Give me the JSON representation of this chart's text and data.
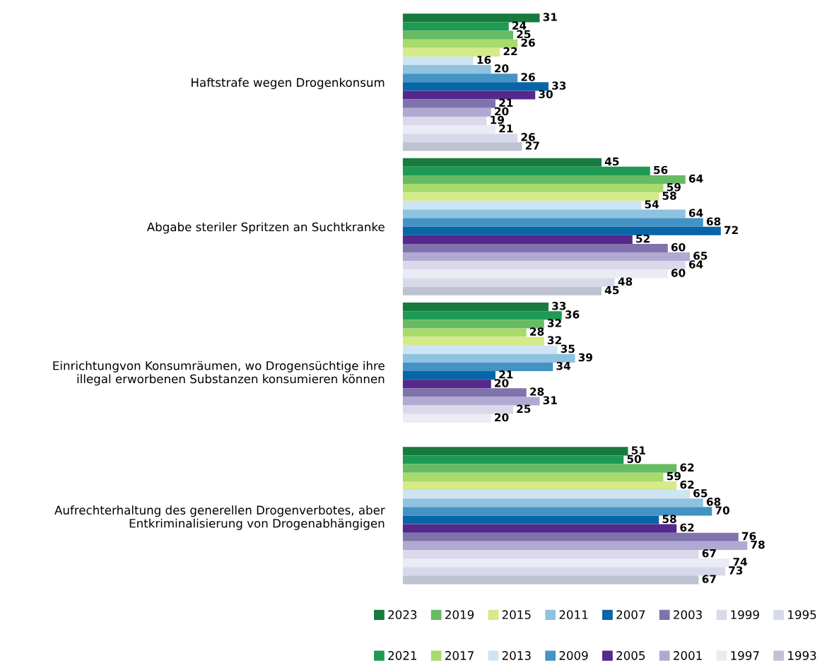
{
  "chart_data": {
    "type": "bar",
    "orientation": "horizontal",
    "data_labels": true,
    "legend": "bottom",
    "grid": false,
    "categories": [
      "Haftstrafe wegen Drogenkonsum",
      "Abgabe steriler Spritzen an Suchtkranke",
      "Einrichtungvon Konsumräumen, wo Drogensüchtige ihre\nillegal erworbenen Substanzen konsumieren können",
      "Aufrechterhaltung des generellen Drogenverbotes, aber\nEntkriminalisierung von Drogenabhängigen"
    ],
    "series": [
      {
        "name": "2023",
        "color": "#177a3f",
        "values": [
          31,
          45,
          33,
          51
        ]
      },
      {
        "name": "2021",
        "color": "#1e9a52",
        "values": [
          24,
          56,
          36,
          50
        ]
      },
      {
        "name": "2019",
        "color": "#66bb64",
        "values": [
          25,
          64,
          32,
          62
        ]
      },
      {
        "name": "2017",
        "color": "#a8da6c",
        "values": [
          26,
          59,
          28,
          59
        ]
      },
      {
        "name": "2015",
        "color": "#d5ea88",
        "values": [
          22,
          58,
          32,
          62
        ]
      },
      {
        "name": "2013",
        "color": "#cde4f4",
        "values": [
          16,
          54,
          35,
          65
        ]
      },
      {
        "name": "2011",
        "color": "#8fc2df",
        "values": [
          20,
          64,
          39,
          68
        ]
      },
      {
        "name": "2009",
        "color": "#4393c4",
        "values": [
          26,
          68,
          34,
          70
        ]
      },
      {
        "name": "2007",
        "color": "#0866a8",
        "values": [
          33,
          72,
          21,
          58
        ]
      },
      {
        "name": "2005",
        "color": "#55288b",
        "values": [
          30,
          52,
          20,
          62
        ]
      },
      {
        "name": "2003",
        "color": "#8073ad",
        "values": [
          21,
          60,
          28,
          76
        ]
      },
      {
        "name": "2001",
        "color": "#b2a9d3",
        "values": [
          20,
          65,
          31,
          78
        ]
      },
      {
        "name": "1999",
        "color": "#d9d9ea",
        "values": [
          19,
          64,
          25,
          67
        ]
      },
      {
        "name": "1997",
        "color": "#ebebf6",
        "values": [
          21,
          60,
          20,
          74
        ]
      },
      {
        "name": "1995",
        "color": "#d6dae8",
        "values": [
          26,
          48,
          null,
          73
        ]
      },
      {
        "name": "1993",
        "color": "#bec3d2",
        "values": [
          27,
          45,
          null,
          67
        ]
      }
    ]
  }
}
